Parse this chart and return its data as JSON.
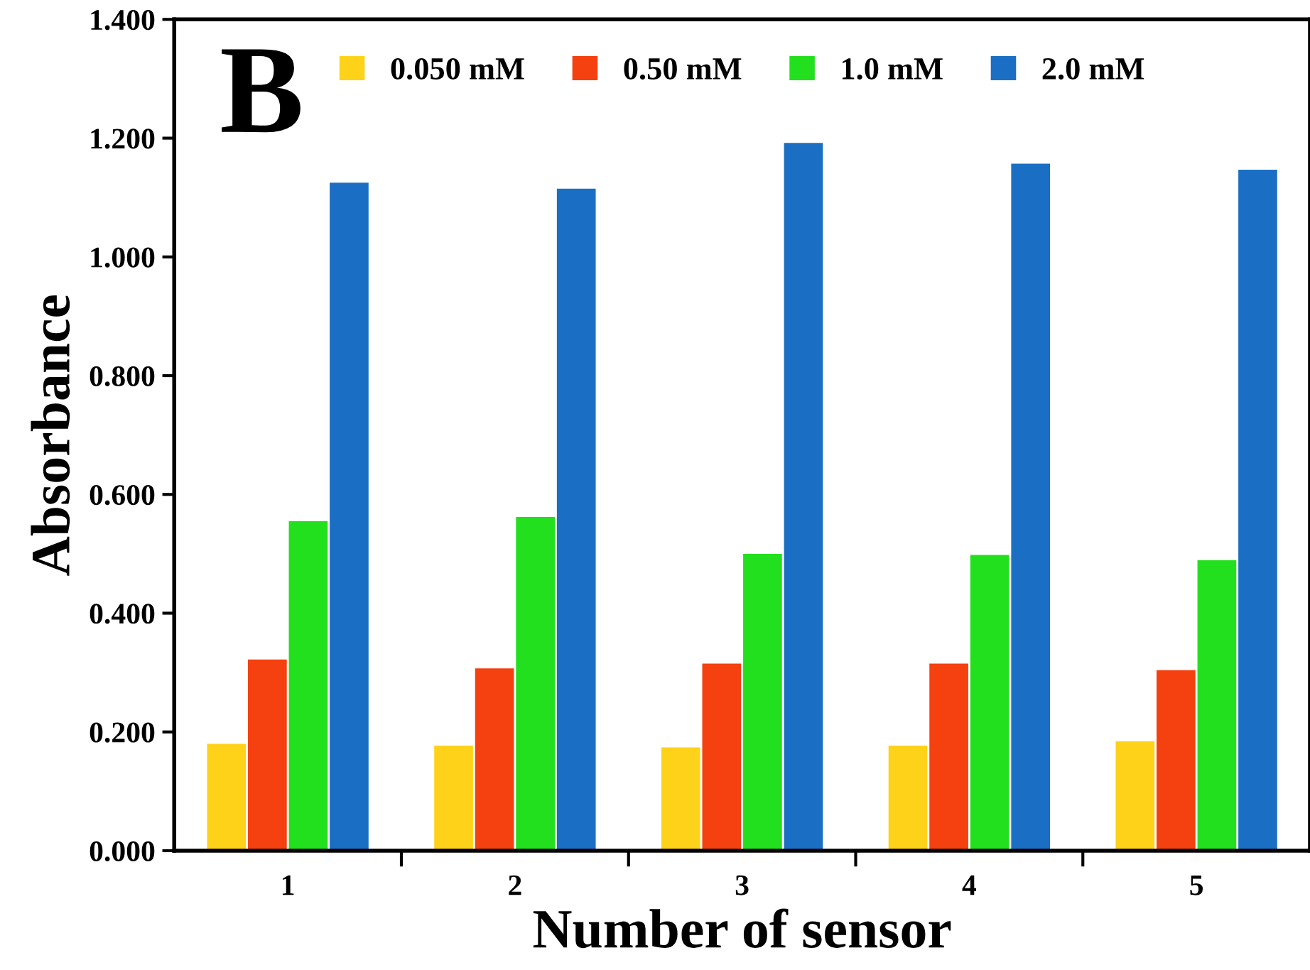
{
  "chart_data": {
    "type": "bar",
    "xlabel": "Number of sensor",
    "ylabel": "Absorbance",
    "annotations": [
      "B"
    ],
    "categories": [
      "1",
      "2",
      "3",
      "4",
      "5"
    ],
    "series": [
      {
        "name": "0.050 mM",
        "color": "#ffd21a",
        "values": [
          0.18,
          0.177,
          0.174,
          0.177,
          0.184
        ]
      },
      {
        "name": "0.50 mM",
        "color": "#f5400f",
        "values": [
          0.322,
          0.307,
          0.315,
          0.315,
          0.304
        ]
      },
      {
        "name": "1.0 mM",
        "color": "#22e01e",
        "values": [
          0.555,
          0.562,
          0.5,
          0.498,
          0.489
        ]
      },
      {
        "name": "2.0 mM",
        "color": "#1a6fc4",
        "values": [
          1.125,
          1.115,
          1.192,
          1.157,
          1.147
        ]
      }
    ],
    "ylim": [
      0,
      1.4
    ],
    "yticks": [
      {
        "value": 0,
        "label": "0.000"
      },
      {
        "value": 0.2,
        "label": "0.200"
      },
      {
        "value": 0.4,
        "label": "0.400"
      },
      {
        "value": 0.6,
        "label": "0.600"
      },
      {
        "value": 0.8,
        "label": "0.800"
      },
      {
        "value": 1.0,
        "label": "1.000"
      },
      {
        "value": 1.2,
        "label": "1.200"
      },
      {
        "value": 1.4,
        "label": "1.400"
      }
    ],
    "grid": false,
    "legend": "top"
  }
}
